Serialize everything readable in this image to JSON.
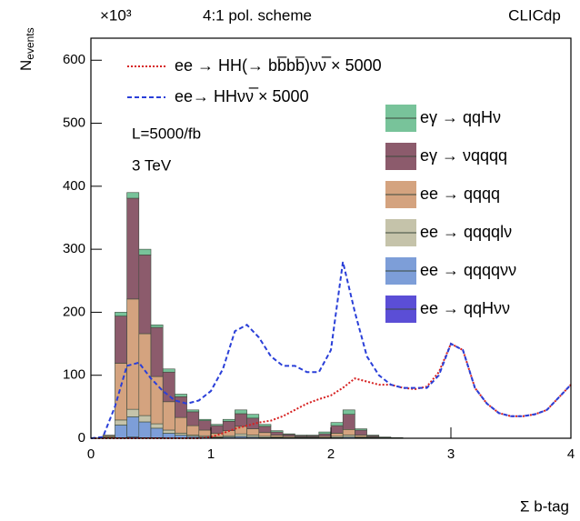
{
  "chart_data": {
    "type": "histogram",
    "stacked": true,
    "title": "4:1 pol. scheme",
    "brand": "CLICdp",
    "y_multiplier": "×10³",
    "ylabel": {
      "main": "N",
      "sub": "events"
    },
    "xlabel": "Σ b-tag",
    "annotations": [
      "L=5000/fb",
      "3 TeV"
    ],
    "xlim": [
      0,
      4
    ],
    "xticks": [
      0,
      1,
      2,
      3,
      4
    ],
    "ylim": [
      0,
      635
    ],
    "yticks": [
      0,
      100,
      200,
      300,
      400,
      500,
      600
    ],
    "bins": [
      0,
      0.1,
      0.2,
      0.3,
      0.4,
      0.5,
      0.6,
      0.7,
      0.8,
      0.9,
      1.0,
      1.1,
      1.2,
      1.3,
      1.4,
      1.5,
      1.6,
      1.7,
      1.8,
      1.9,
      2.0,
      2.1,
      2.2,
      2.3,
      2.4,
      2.5,
      2.6
    ],
    "series": [
      {
        "name": "ee → qqHνν",
        "color": "#5b4ed6",
        "values": [
          0,
          0,
          1,
          2,
          1,
          1,
          0,
          0,
          0,
          0,
          0,
          0,
          0,
          0,
          0,
          0,
          0,
          0,
          0,
          0,
          0,
          0,
          0,
          0,
          0,
          0
        ]
      },
      {
        "name": "ee → qqqqνν",
        "color": "#7d9ed8",
        "values": [
          0,
          1,
          20,
          32,
          25,
          15,
          8,
          5,
          3,
          2,
          1,
          2,
          3,
          2,
          1,
          1,
          0,
          0,
          0,
          0,
          1,
          2,
          1,
          0,
          0,
          0
        ]
      },
      {
        "name": "ee → qqqqlν",
        "color": "#c5c3aa",
        "values": [
          0,
          1,
          8,
          12,
          10,
          7,
          5,
          3,
          2,
          2,
          1,
          2,
          4,
          3,
          2,
          1,
          1,
          1,
          1,
          1,
          2,
          3,
          1,
          1,
          0,
          0
        ]
      },
      {
        "name": "ee → qqqq",
        "color": "#d4a37f",
        "values": [
          0,
          2,
          90,
          175,
          130,
          75,
          45,
          25,
          15,
          9,
          6,
          8,
          12,
          10,
          6,
          3,
          2,
          1,
          1,
          2,
          5,
          9,
          3,
          1,
          1,
          0
        ]
      },
      {
        "name": "eγ → νqqqq",
        "color": "#8c5b6c",
        "values": [
          0,
          1,
          75,
          160,
          125,
          78,
          47,
          33,
          22,
          15,
          12,
          15,
          20,
          17,
          10,
          5,
          3,
          2,
          2,
          4,
          12,
          24,
          8,
          2,
          1,
          1
        ]
      },
      {
        "name": "eγ → qqHν",
        "color": "#78c39a",
        "values": [
          0,
          0,
          6,
          9,
          9,
          4,
          5,
          4,
          3,
          2,
          2,
          3,
          6,
          6,
          3,
          2,
          1,
          1,
          1,
          3,
          5,
          7,
          2,
          1,
          0,
          0
        ]
      }
    ],
    "lines": [
      {
        "name": "ee → HH(→ bb̅bb̅)νν̅ × 5000",
        "color": "#d62020",
        "dash": "2,2",
        "x": [
          0,
          0.1,
          0.2,
          0.3,
          0.4,
          0.5,
          0.6,
          0.7,
          0.8,
          0.9,
          1.0,
          1.1,
          1.2,
          1.3,
          1.4,
          1.5,
          1.6,
          1.7,
          1.8,
          1.9,
          2.0,
          2.1,
          2.2,
          2.3,
          2.4,
          2.5,
          2.6,
          2.7,
          2.8,
          2.9,
          3.0,
          3.1,
          3.2,
          3.3,
          3.4,
          3.5,
          3.6,
          3.7,
          3.8,
          3.9,
          4.0
        ],
        "values": [
          0,
          0,
          0,
          0,
          0,
          0,
          0,
          0,
          0,
          0,
          2,
          8,
          15,
          20,
          25,
          28,
          35,
          45,
          55,
          62,
          68,
          80,
          95,
          90,
          85,
          85,
          80,
          78,
          82,
          105,
          150,
          140,
          80,
          55,
          40,
          35,
          35,
          38,
          45,
          65,
          85
        ]
      },
      {
        "name": "ee→ HHνν̅ × 5000",
        "color": "#2a3fd8",
        "dash": "5,3",
        "x": [
          0,
          0.1,
          0.2,
          0.3,
          0.4,
          0.5,
          0.6,
          0.7,
          0.8,
          0.9,
          1.0,
          1.1,
          1.2,
          1.3,
          1.4,
          1.5,
          1.6,
          1.7,
          1.8,
          1.9,
          2.0,
          2.1,
          2.2,
          2.3,
          2.4,
          2.5,
          2.6,
          2.7,
          2.8,
          2.9,
          3.0,
          3.1,
          3.2,
          3.3,
          3.4,
          3.5,
          3.6,
          3.7,
          3.8,
          3.9,
          4.0
        ],
        "values": [
          0,
          2,
          50,
          115,
          120,
          95,
          75,
          60,
          55,
          60,
          75,
          110,
          170,
          180,
          160,
          130,
          115,
          115,
          105,
          105,
          140,
          280,
          200,
          130,
          100,
          85,
          80,
          80,
          80,
          100,
          150,
          140,
          80,
          55,
          40,
          35,
          35,
          38,
          45,
          65,
          85
        ]
      }
    ]
  }
}
